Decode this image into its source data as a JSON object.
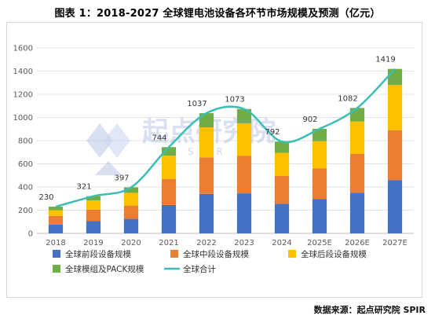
{
  "title": "图表 1：2018-2027 全球锂电池设备各环节市场规模及预测（亿元）",
  "source": "数据来源：起点研究院 SPIR",
  "watermark": {
    "text": "起点研究院",
    "sub": "SPIR"
  },
  "colors": {
    "front": "#4472c4",
    "middle": "#ed7d31",
    "back": "#ffc000",
    "module": "#70ad47",
    "total_line": "#3bbfb5"
  },
  "chart_data": {
    "type": "bar",
    "stacked": true,
    "categories": [
      "2018",
      "2019",
      "2020",
      "2021",
      "2022",
      "2023",
      "2024",
      "2025E",
      "2026E",
      "2027E"
    ],
    "series": [
      {
        "name": "全球前段设备规模",
        "color_key": "front",
        "values": [
          75,
          105,
          125,
          245,
          340,
          345,
          255,
          295,
          350,
          460
        ]
      },
      {
        "name": "全球中段设备规模",
        "color_key": "middle",
        "values": [
          75,
          100,
          115,
          225,
          315,
          325,
          240,
          265,
          335,
          430
        ]
      },
      {
        "name": "全球后段设备规模",
        "color_key": "back",
        "values": [
          50,
          80,
          110,
          200,
          260,
          280,
          200,
          235,
          280,
          390
        ]
      },
      {
        "name": "全球模组及PACK规模",
        "color_key": "module",
        "values": [
          30,
          36,
          47,
          74,
          122,
          123,
          97,
          107,
          117,
          139
        ]
      }
    ],
    "line": {
      "name": "全球合计",
      "type": "line",
      "smooth": true,
      "values": [
        230,
        321,
        397,
        744,
        1037,
        1073,
        792,
        902,
        1082,
        1419
      ]
    },
    "data_labels": [
      "230",
      "321",
      "397",
      "744",
      "1037",
      "1073",
      "792",
      "902",
      "1082",
      "1419"
    ],
    "yticks": [
      "0",
      "200",
      "400",
      "600",
      "800",
      "1000",
      "1200",
      "1400",
      "1600"
    ],
    "ylim": [
      0,
      1600
    ],
    "grid": true,
    "legend_position": "bottom"
  }
}
